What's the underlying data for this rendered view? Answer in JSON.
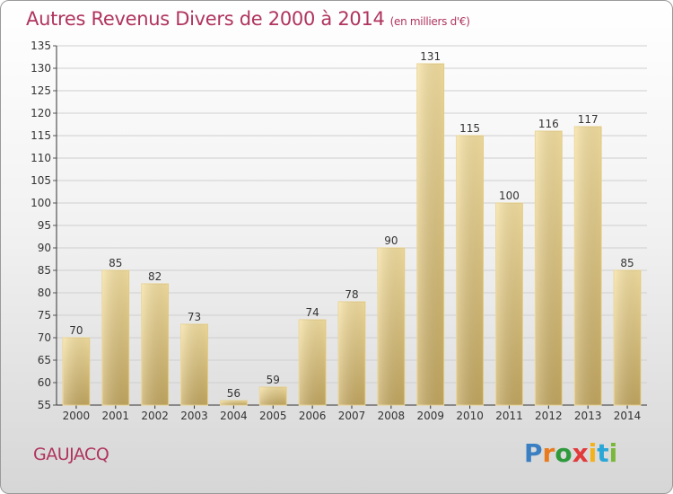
{
  "title": "Autres Revenus Divers de 2000 à 2014",
  "title_unit": "(en milliers d'€)",
  "place": "GAUJACQ",
  "logo": "Proxiti",
  "colors": {
    "title": "#b0345f",
    "bar_light": "#f6df9c",
    "bar_dark": "#c9ad64",
    "grid": "#cccccc"
  },
  "chart_data": {
    "type": "bar",
    "categories": [
      "2000",
      "2001",
      "2002",
      "2003",
      "2004",
      "2005",
      "2006",
      "2007",
      "2008",
      "2009",
      "2010",
      "2011",
      "2012",
      "2013",
      "2014"
    ],
    "values": [
      70,
      85,
      82,
      73,
      56,
      59,
      74,
      78,
      90,
      131,
      115,
      100,
      116,
      117,
      85
    ],
    "title": "Autres Revenus Divers de 2000 à 2014",
    "xlabel": "",
    "ylabel": "",
    "ylim": [
      55,
      135
    ],
    "yticks": [
      55,
      60,
      65,
      70,
      75,
      80,
      85,
      90,
      95,
      100,
      105,
      110,
      115,
      120,
      125,
      130,
      135
    ],
    "grid": true,
    "legend": "none"
  }
}
